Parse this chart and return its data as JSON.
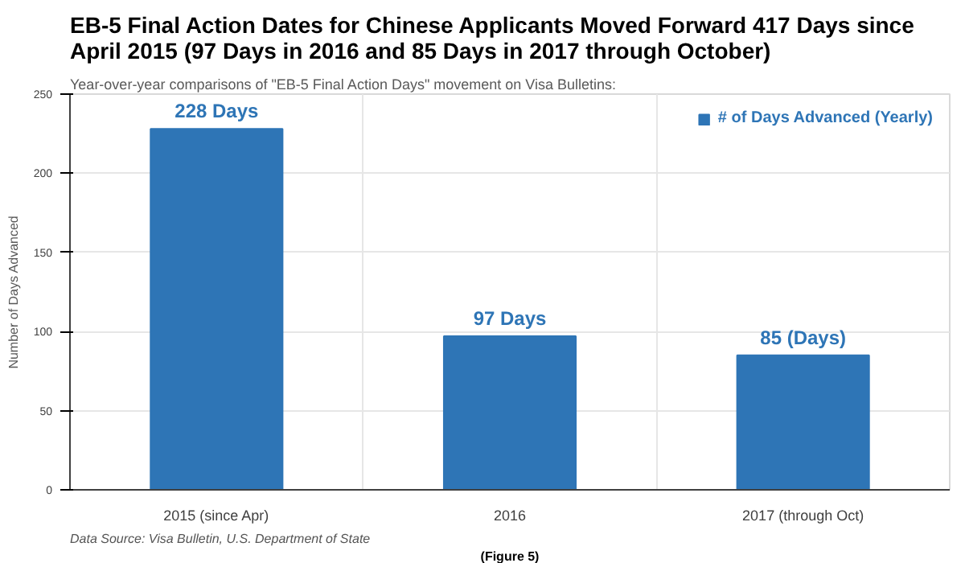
{
  "chart_data": {
    "type": "bar",
    "title": "EB-5 Final Action Dates for Chinese Applicants Moved Forward 417 Days since April 2015 (97 Days in 2016 and 85 Days in 2017 through October)",
    "subtitle": "Year-over-year comparisons of \"EB-5 Final Action Days\" movement on Visa Bulletins:",
    "ylabel": "Number of Days Advanced",
    "categories": [
      "2015 (since Apr)",
      "2016",
      "2017 (through Oct)"
    ],
    "series": [
      {
        "name": "# of Days Advanced (Yearly)",
        "color": "#2e75b6",
        "values": [
          228,
          97,
          85
        ]
      }
    ],
    "value_labels": [
      "228 Days",
      "97 Days",
      "85 (Days)"
    ],
    "ylim": [
      0,
      250
    ],
    "yticks": [
      0,
      50,
      100,
      150,
      200,
      250
    ],
    "grid": true,
    "legend": "top right",
    "annotations": [
      "Data Source: Visa Bulletin, U.S. Department of State",
      "(Figure 5)"
    ]
  }
}
